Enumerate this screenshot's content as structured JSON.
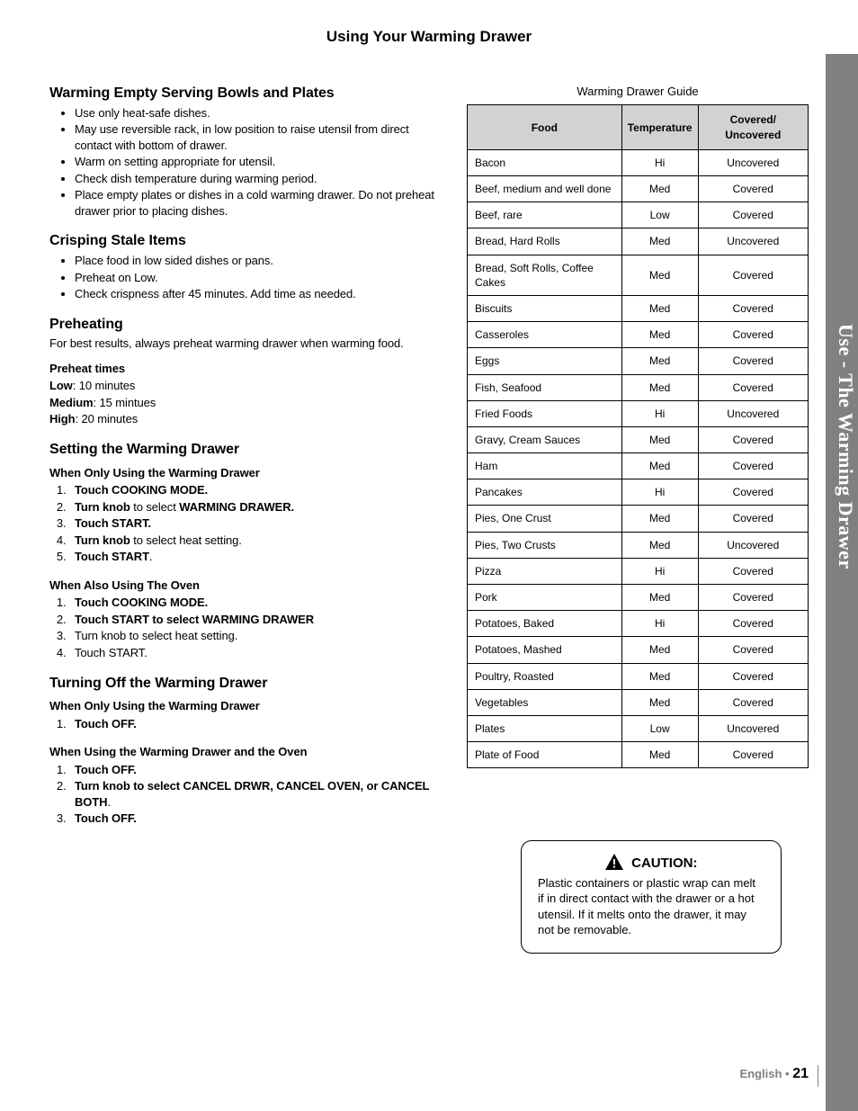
{
  "page": {
    "top_title": "Using Your Warming Drawer",
    "side_tab": "Use - The Warming Drawer",
    "footer_lang": "English • ",
    "footer_page": "21"
  },
  "sections": {
    "bowls": {
      "heading": "Warming Empty Serving Bowls and Plates",
      "items": [
        "Use only heat-safe dishes.",
        "May use reversible rack, in low position to raise utensil from direct contact with bottom of drawer.",
        "Warm on setting appropriate for utensil.",
        "Check dish temperature during warming period.",
        "Place empty plates or dishes in a cold warming drawer.  Do not preheat drawer prior to placing dishes."
      ]
    },
    "crisping": {
      "heading": "Crisping Stale Items",
      "items": [
        "Place food in low sided dishes or pans.",
        "Preheat on Low.",
        "Check crispness after 45 minutes. Add time as needed."
      ]
    },
    "preheat": {
      "heading": "Preheating",
      "intro": "For best results, always preheat warming drawer when warming food.",
      "sub": "Preheat times",
      "rows": [
        {
          "lbl": "Low",
          "val": ":  10 minutes"
        },
        {
          "lbl": "Medium",
          "val": ":  15 mintues"
        },
        {
          "lbl": "High",
          "val": ": 20 minutes"
        }
      ]
    },
    "setting": {
      "heading": "Setting the Warming Drawer",
      "sub1": "When Only Using the Warming Drawer",
      "list1": [
        "<b>Touch COOKING MODE.</b>",
        "<b>Turn knob</b> to select <b>WARMING DRAWER.</b>",
        "<b>Touch START.</b>",
        "<b>Turn knob</b> to select heat setting.",
        "<b>Touch START</b>."
      ],
      "sub2": "When Also Using The Oven",
      "list2": [
        "<b>Touch COOKING MODE.</b>",
        "<b>Touch START to select WARMING DRAWER</b>",
        "Turn knob to select heat setting.",
        "Touch START."
      ]
    },
    "turnoff": {
      "heading": "Turning Off the Warming Drawer",
      "sub1": "When Only Using the Warming Drawer",
      "list1": [
        "<b>Touch OFF.</b>"
      ],
      "sub2": "When Using the Warming Drawer  and the Oven",
      "list2": [
        "<b>Touch OFF.</b>",
        "<b>Turn knob to select CANCEL DRWR, CANCEL OVEN, or CANCEL BOTH</b>.",
        "<b>Touch OFF.</b>"
      ]
    }
  },
  "table": {
    "caption": "Warming Drawer Guide",
    "columns": [
      "Food",
      "Temperature",
      "Covered/ Uncovered"
    ],
    "header_bg": "#d2d2d2",
    "border_color": "#000000",
    "rows": [
      [
        "Bacon",
        "Hi",
        "Uncovered"
      ],
      [
        "Beef, medium and well done",
        "Med",
        "Covered"
      ],
      [
        "Beef, rare",
        "Low",
        "Covered"
      ],
      [
        "Bread, Hard Rolls",
        "Med",
        "Uncovered"
      ],
      [
        "Bread, Soft Rolls, Coffee Cakes",
        "Med",
        "Covered"
      ],
      [
        "Biscuits",
        "Med",
        "Covered"
      ],
      [
        "Casseroles",
        "Med",
        "Covered"
      ],
      [
        "Eggs",
        "Med",
        "Covered"
      ],
      [
        "Fish, Seafood",
        "Med",
        "Covered"
      ],
      [
        "Fried Foods",
        "Hi",
        "Uncovered"
      ],
      [
        "Gravy, Cream Sauces",
        "Med",
        "Covered"
      ],
      [
        "Ham",
        "Med",
        "Covered"
      ],
      [
        "Pancakes",
        "Hi",
        "Covered"
      ],
      [
        "Pies, One Crust",
        "Med",
        "Covered"
      ],
      [
        "Pies, Two Crusts",
        "Med",
        "Uncovered"
      ],
      [
        "Pizza",
        "Hi",
        "Covered"
      ],
      [
        "Pork",
        "Med",
        "Covered"
      ],
      [
        "Potatoes, Baked",
        "Hi",
        "Covered"
      ],
      [
        "Potatoes, Mashed",
        "Med",
        "Covered"
      ],
      [
        "Poultry, Roasted",
        "Med",
        "Covered"
      ],
      [
        "Vegetables",
        "Med",
        "Covered"
      ],
      [
        "Plates",
        "Low",
        "Uncovered"
      ],
      [
        "Plate of Food",
        "Med",
        "Covered"
      ]
    ]
  },
  "caution": {
    "title": "CAUTION:",
    "body": "Plastic containers or plastic wrap can melt if in direct contact with the drawer or a hot utensil.  If it melts onto the drawer, it may not be removable."
  }
}
